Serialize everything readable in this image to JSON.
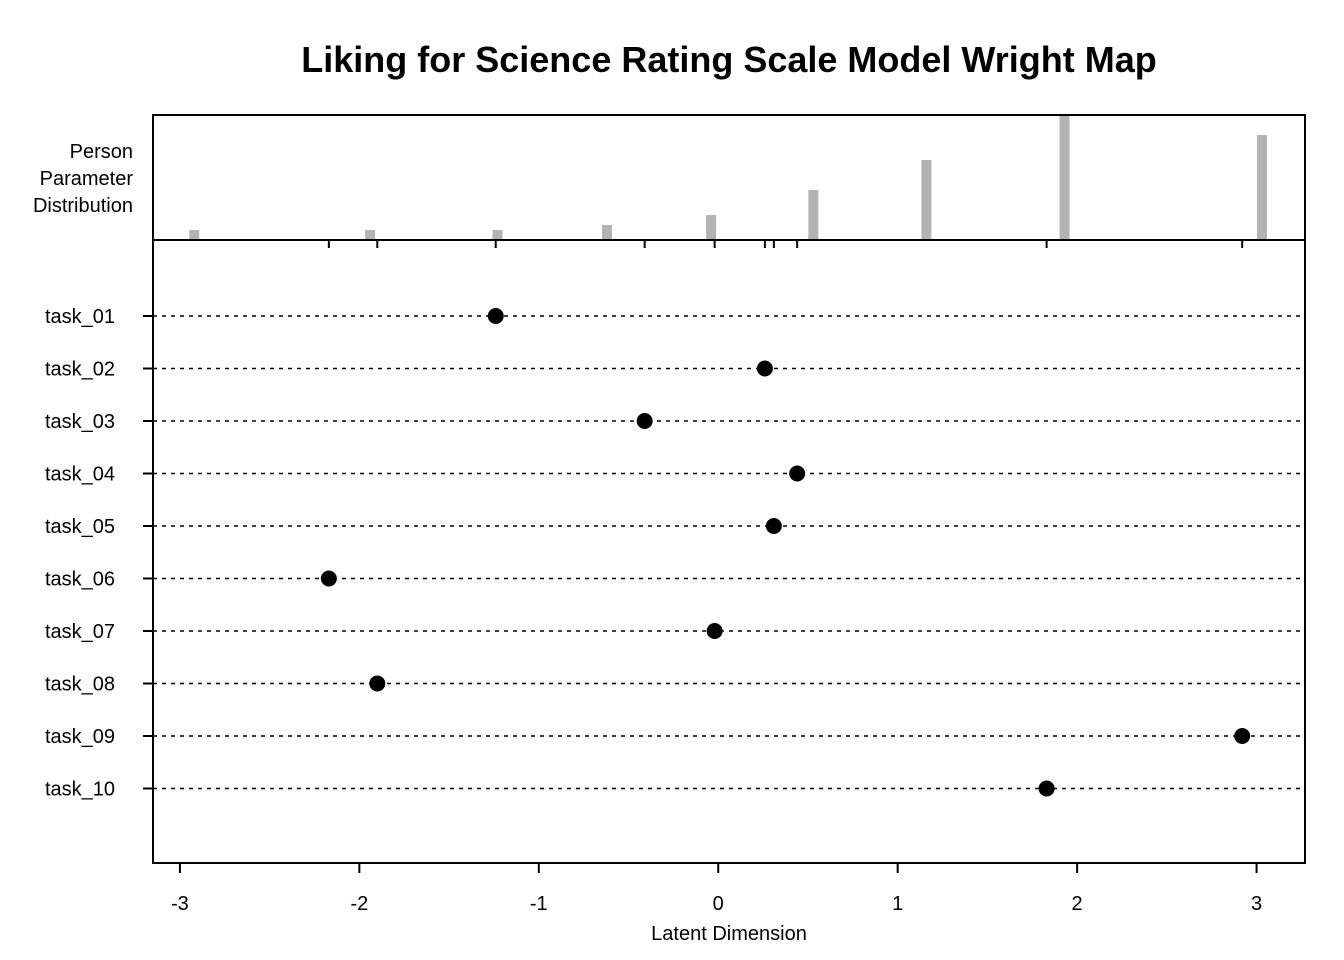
{
  "chart_data": {
    "type": "scatter",
    "title": "Liking for Science Rating Scale Model Wright Map",
    "xlabel": "Latent Dimension",
    "histogram_label": [
      "Person",
      "Parameter",
      "Distribution"
    ],
    "xlim": [
      -3.15,
      3.27
    ],
    "xticks": [
      -3,
      -2,
      -1,
      0,
      1,
      2,
      3
    ],
    "xtick_labels": [
      "-3",
      "-2",
      "-1",
      "0",
      "1",
      "2",
      "3"
    ],
    "person_distribution": {
      "color": "#b3b3b3",
      "bins": [
        {
          "x": -2.92,
          "freq": 1
        },
        {
          "x": -1.94,
          "freq": 1
        },
        {
          "x": -1.23,
          "freq": 1
        },
        {
          "x": -0.62,
          "freq": 1.5
        },
        {
          "x": -0.04,
          "freq": 2.5
        },
        {
          "x": 0.53,
          "freq": 5
        },
        {
          "x": 1.16,
          "freq": 8
        },
        {
          "x": 1.93,
          "freq": 12.5
        },
        {
          "x": 3.03,
          "freq": 10.5
        }
      ],
      "max_freq": 12.5
    },
    "items": [
      {
        "name": "task_01",
        "x": -1.24
      },
      {
        "name": "task_02",
        "x": 0.26
      },
      {
        "name": "task_03",
        "x": -0.41
      },
      {
        "name": "task_04",
        "x": 0.44
      },
      {
        "name": "task_05",
        "x": 0.31
      },
      {
        "name": "task_06",
        "x": -2.17
      },
      {
        "name": "task_07",
        "x": -0.02
      },
      {
        "name": "task_08",
        "x": -1.9
      },
      {
        "name": "task_09",
        "x": 2.92
      },
      {
        "name": "task_10",
        "x": 1.83
      }
    ],
    "point_color": "#000000",
    "grid": true
  }
}
